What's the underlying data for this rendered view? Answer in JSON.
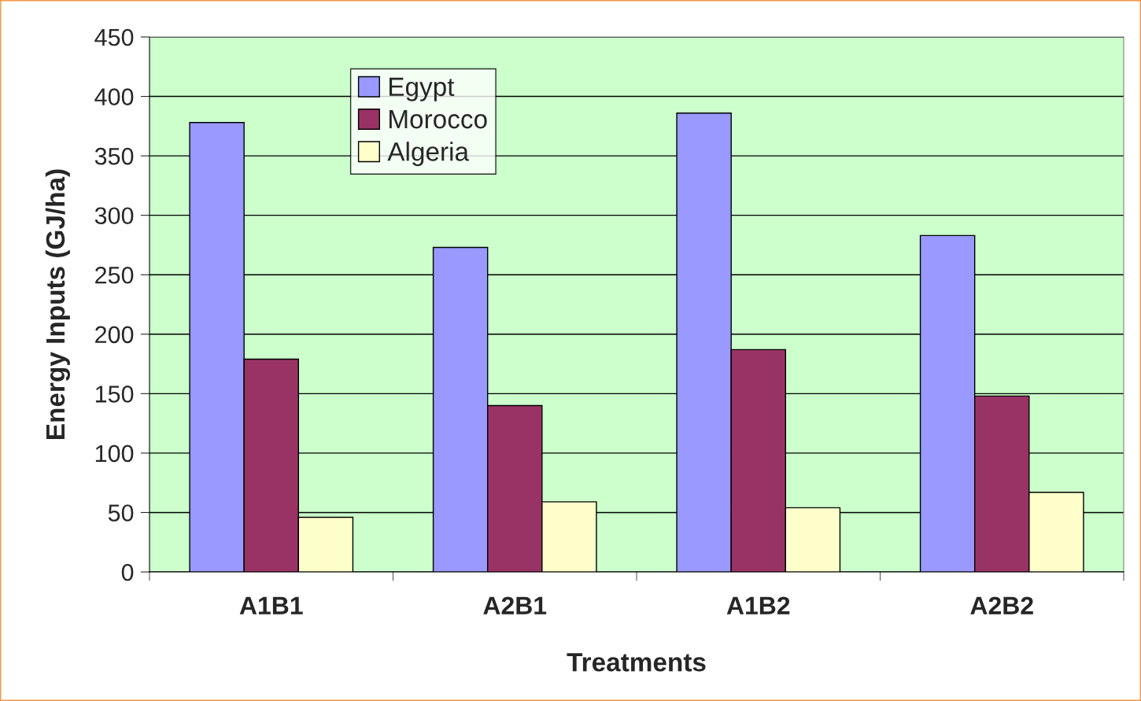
{
  "chart_data": {
    "type": "bar",
    "xlabel": "Treatments",
    "ylabel": "Energy Inputs (GJ/ha)",
    "categories": [
      "A1B1",
      "A2B1",
      "A1B2",
      "A2B2"
    ],
    "series": [
      {
        "name": "Egypt",
        "color": "#9999ff",
        "values": [
          378,
          273,
          386,
          283
        ]
      },
      {
        "name": "Morocco",
        "color": "#993366",
        "values": [
          179,
          140,
          187,
          148
        ]
      },
      {
        "name": "Algeria",
        "color": "#ffffcc",
        "values": [
          46,
          59,
          54,
          67
        ]
      }
    ],
    "ylim": [
      0,
      450
    ],
    "yticks": [
      0,
      50,
      100,
      150,
      200,
      250,
      300,
      350,
      400,
      450
    ],
    "grid": "y",
    "legend": "top left"
  }
}
